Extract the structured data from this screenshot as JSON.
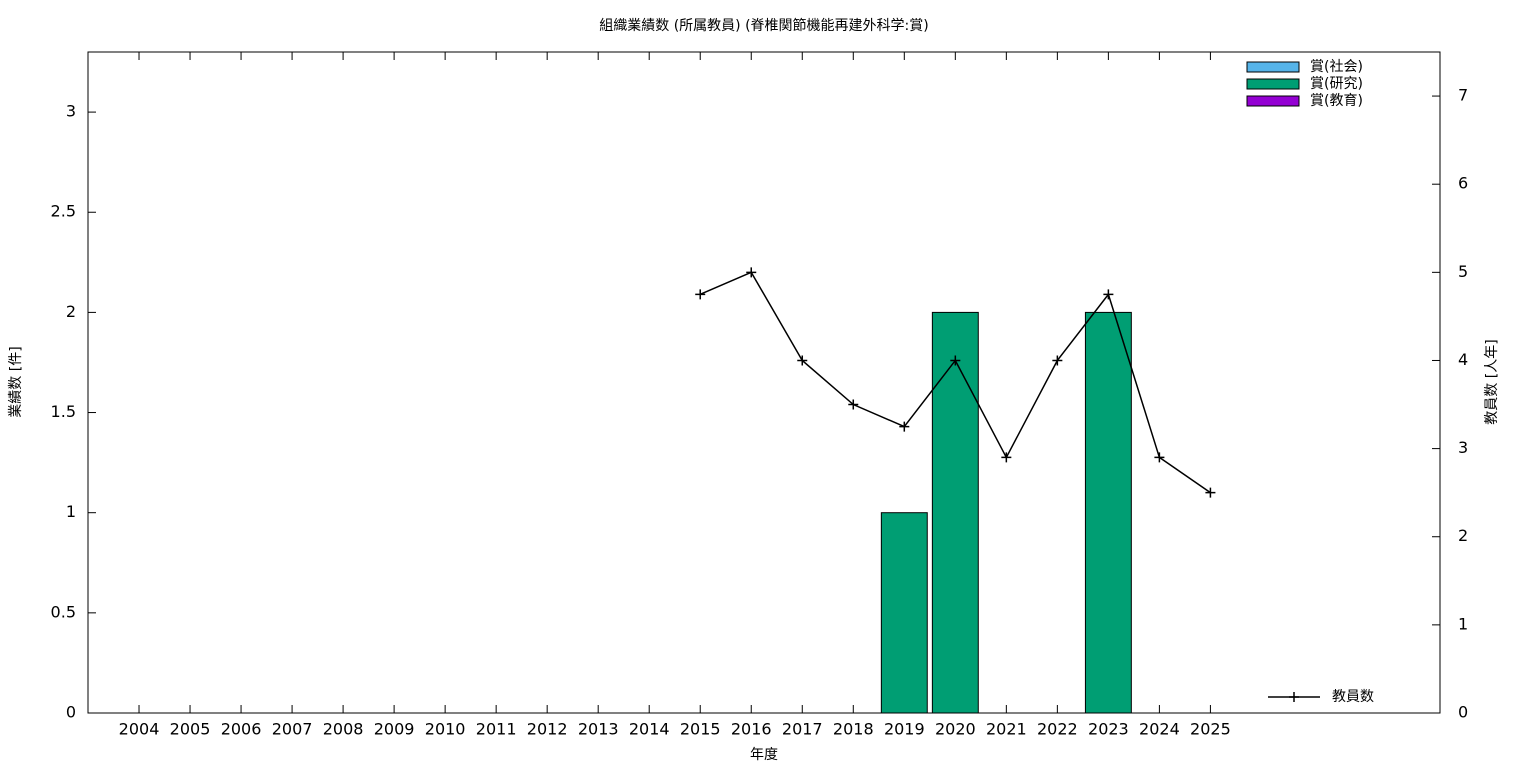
{
  "chart_data": {
    "type": "bar",
    "title": "組織業績数 (所属教員) (脊椎関節機能再建外科学:賞)",
    "x_label": "年度",
    "y_label": "業績数 [件]",
    "y2_label": "教員数 [人年]",
    "categories": [
      "2004",
      "2005",
      "2006",
      "2007",
      "2008",
      "2009",
      "2010",
      "2011",
      "2012",
      "2013",
      "2014",
      "2015",
      "2016",
      "2017",
      "2018",
      "2019",
      "2020",
      "2021",
      "2022",
      "2023",
      "2024",
      "2025"
    ],
    "stacked": true,
    "series": [
      {
        "name": "賞(社会)",
        "color": "#56b4e9",
        "values": [
          0,
          0,
          0,
          0,
          0,
          0,
          0,
          0,
          0,
          0,
          0,
          0,
          0,
          0,
          0,
          0,
          0,
          0,
          0,
          0,
          0,
          0
        ]
      },
      {
        "name": "賞(研究)",
        "color": "#009e73",
        "values": [
          0,
          0,
          0,
          0,
          0,
          0,
          0,
          0,
          0,
          0,
          0,
          0,
          0,
          0,
          0,
          1,
          2,
          0,
          0,
          2,
          0,
          0
        ]
      },
      {
        "name": "賞(教育)",
        "color": "#9400d3",
        "values": [
          0,
          0,
          0,
          0,
          0,
          0,
          0,
          0,
          0,
          0,
          0,
          0,
          0,
          0,
          0,
          0,
          0,
          0,
          0,
          0,
          0,
          0
        ]
      },
      {
        "name": "教員数",
        "type": "line",
        "axis": "y2",
        "color": "#000000",
        "values": [
          null,
          null,
          null,
          null,
          null,
          null,
          null,
          null,
          null,
          null,
          null,
          4.75,
          5,
          4,
          3.5,
          3.25,
          4,
          2.9,
          4,
          4.75,
          2.9,
          2.5
        ]
      }
    ],
    "ylim": [
      0,
      3.3
    ],
    "yticks": [
      0,
      0.5,
      1,
      1.5,
      2,
      2.5,
      3
    ],
    "y2lim": [
      0,
      7.5
    ],
    "y2ticks": [
      0,
      1,
      2,
      3,
      4,
      5,
      6,
      7
    ],
    "grid": false
  }
}
